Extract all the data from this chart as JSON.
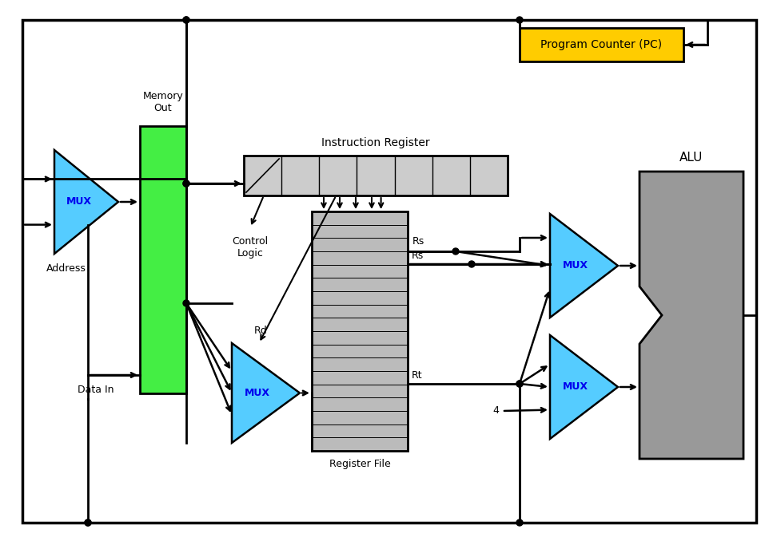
{
  "bg_color": "#ffffff",
  "mux_color": "#55ccff",
  "memory_color": "#44ee44",
  "pc_color": "#ffcc00",
  "alu_color": "#999999",
  "reg_file_color": "#bbbbbb",
  "instr_reg_color": "#cccccc",
  "text_blue": "#0000ee",
  "text_black": "#000000",
  "label_pc": "Program Counter (PC)",
  "label_mux": "MUX",
  "label_alu": "ALU",
  "label_mem_out": "Memory\nOut",
  "label_address": "Address",
  "label_data_in": "Data In",
  "label_control": "Control\nLogic",
  "label_rs": "Rs",
  "label_rd": "Rd",
  "label_rt": "Rt",
  "label_4": "4",
  "label_reg_file": "Register File",
  "label_instr_reg": "Instruction Register"
}
